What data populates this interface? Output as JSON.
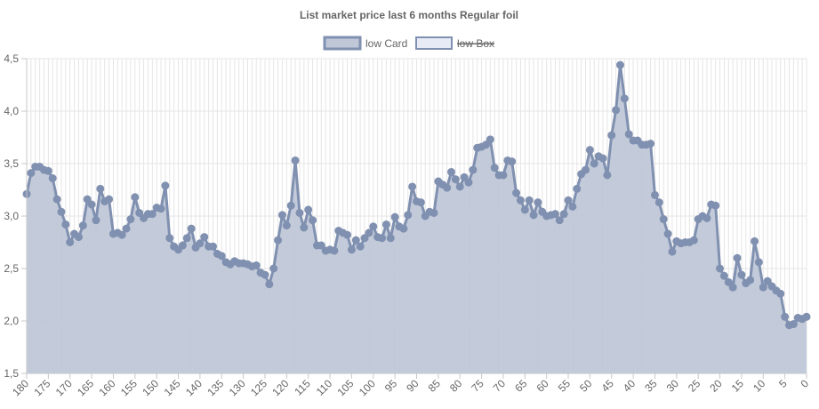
{
  "chart_data": {
    "type": "area",
    "title": "List market price last 6 months Regular foil",
    "legend": [
      {
        "label": "low Card",
        "hidden": false,
        "fill": "#c0c8d8",
        "stroke": "#8090b0"
      },
      {
        "label": "low Box",
        "hidden": true,
        "fill": "#e6ebf5",
        "stroke": "#8090b0"
      }
    ],
    "xlabel": "",
    "ylabel": "",
    "ylim": [
      1.5,
      4.5
    ],
    "xlim": [
      180,
      0
    ],
    "yticks": [
      1.5,
      2.0,
      2.5,
      3.0,
      3.5,
      4.0,
      4.5
    ],
    "ytick_labels": [
      "1,5",
      "2,0",
      "2,5",
      "3,0",
      "3,5",
      "4,0",
      "4,5"
    ],
    "xticks": [
      180,
      175,
      170,
      165,
      160,
      155,
      150,
      145,
      140,
      135,
      130,
      125,
      120,
      115,
      110,
      105,
      100,
      95,
      90,
      85,
      80,
      75,
      70,
      65,
      60,
      55,
      50,
      45,
      40,
      35,
      30,
      25,
      20,
      15,
      10,
      5,
      0
    ],
    "grid": true,
    "colors": {
      "line": "#8090b0",
      "fill": "#c0c8d8",
      "grid": "#e5e5e5",
      "axis": "#c8c8c8",
      "text": "#666666"
    },
    "series": [
      {
        "name": "low Card",
        "x": [
          180,
          179,
          178,
          177,
          176,
          175,
          174,
          173,
          172,
          171,
          170,
          169,
          168,
          167,
          166,
          165,
          164,
          163,
          162,
          161,
          160,
          159,
          158,
          157,
          156,
          155,
          154,
          153,
          152,
          151,
          150,
          149,
          148,
          147,
          146,
          145,
          144,
          143,
          142,
          141,
          140,
          139,
          138,
          137,
          136,
          135,
          134,
          133,
          132,
          131,
          130,
          129,
          128,
          127,
          126,
          125,
          124,
          123,
          122,
          121,
          120,
          119,
          118,
          117,
          116,
          115,
          114,
          113,
          112,
          111,
          110,
          109,
          108,
          107,
          106,
          105,
          104,
          103,
          102,
          101,
          100,
          99,
          98,
          97,
          96,
          95,
          94,
          93,
          92,
          91,
          90,
          89,
          88,
          87,
          86,
          85,
          84,
          83,
          82,
          81,
          80,
          79,
          78,
          77,
          76,
          75,
          74,
          73,
          72,
          71,
          70,
          69,
          68,
          67,
          66,
          65,
          64,
          63,
          62,
          61,
          60,
          59,
          58,
          57,
          56,
          55,
          54,
          53,
          52,
          51,
          50,
          49,
          48,
          47,
          46,
          45,
          44,
          43,
          42,
          41,
          40,
          39,
          38,
          37,
          36,
          35,
          34,
          33,
          32,
          31,
          30,
          29,
          28,
          27,
          26,
          25,
          24,
          23,
          22,
          21,
          20,
          19,
          18,
          17,
          16,
          15,
          14,
          13,
          12,
          11,
          10,
          9,
          8,
          7,
          6,
          5,
          4,
          3,
          2,
          1,
          0
        ],
        "values": [
          3.21,
          3.41,
          3.47,
          3.47,
          3.44,
          3.43,
          3.36,
          3.16,
          3.04,
          2.92,
          2.75,
          2.83,
          2.8,
          2.91,
          3.16,
          3.11,
          2.96,
          3.26,
          3.14,
          3.16,
          2.83,
          2.84,
          2.82,
          2.88,
          2.97,
          3.18,
          3.03,
          2.98,
          3.02,
          3.02,
          3.08,
          3.07,
          3.29,
          2.79,
          2.71,
          2.68,
          2.72,
          2.79,
          2.88,
          2.7,
          2.74,
          2.8,
          2.71,
          2.71,
          2.64,
          2.62,
          2.56,
          2.54,
          2.57,
          2.55,
          2.55,
          2.54,
          2.52,
          2.53,
          2.46,
          2.44,
          2.35,
          2.5,
          2.77,
          3.01,
          2.91,
          3.1,
          3.53,
          3.03,
          2.89,
          3.06,
          2.96,
          2.72,
          2.72,
          2.67,
          2.68,
          2.67,
          2.86,
          2.84,
          2.82,
          2.68,
          2.77,
          2.71,
          2.79,
          2.84,
          2.9,
          2.8,
          2.79,
          2.92,
          2.79,
          2.99,
          2.9,
          2.88,
          3.01,
          3.28,
          3.14,
          3.13,
          3.0,
          3.04,
          3.03,
          3.33,
          3.3,
          3.27,
          3.42,
          3.35,
          3.28,
          3.37,
          3.32,
          3.44,
          3.65,
          3.66,
          3.68,
          3.73,
          3.46,
          3.39,
          3.39,
          3.53,
          3.52,
          3.22,
          3.15,
          3.06,
          3.15,
          3.01,
          3.13,
          3.04,
          3.0,
          3.01,
          3.02,
          2.96,
          3.02,
          3.15,
          3.09,
          3.26,
          3.4,
          3.44,
          3.63,
          3.5,
          3.57,
          3.55,
          3.39,
          3.77,
          4.01,
          4.44,
          4.12,
          3.78,
          3.72,
          3.72,
          3.68,
          3.68,
          3.69,
          3.2,
          3.13,
          2.97,
          2.83,
          2.66,
          2.76,
          2.74,
          2.75,
          2.75,
          2.77,
          2.97,
          3.0,
          2.98,
          3.11,
          3.1,
          2.5,
          2.43,
          2.37,
          2.32,
          2.6,
          2.44,
          2.36,
          2.39,
          2.76,
          2.56,
          2.32,
          2.38,
          2.33,
          2.29,
          2.26,
          2.04,
          1.96,
          1.97,
          2.03,
          2.02,
          2.04
        ]
      },
      {
        "name": "low Box",
        "hidden": true,
        "x": [],
        "values": []
      }
    ]
  }
}
